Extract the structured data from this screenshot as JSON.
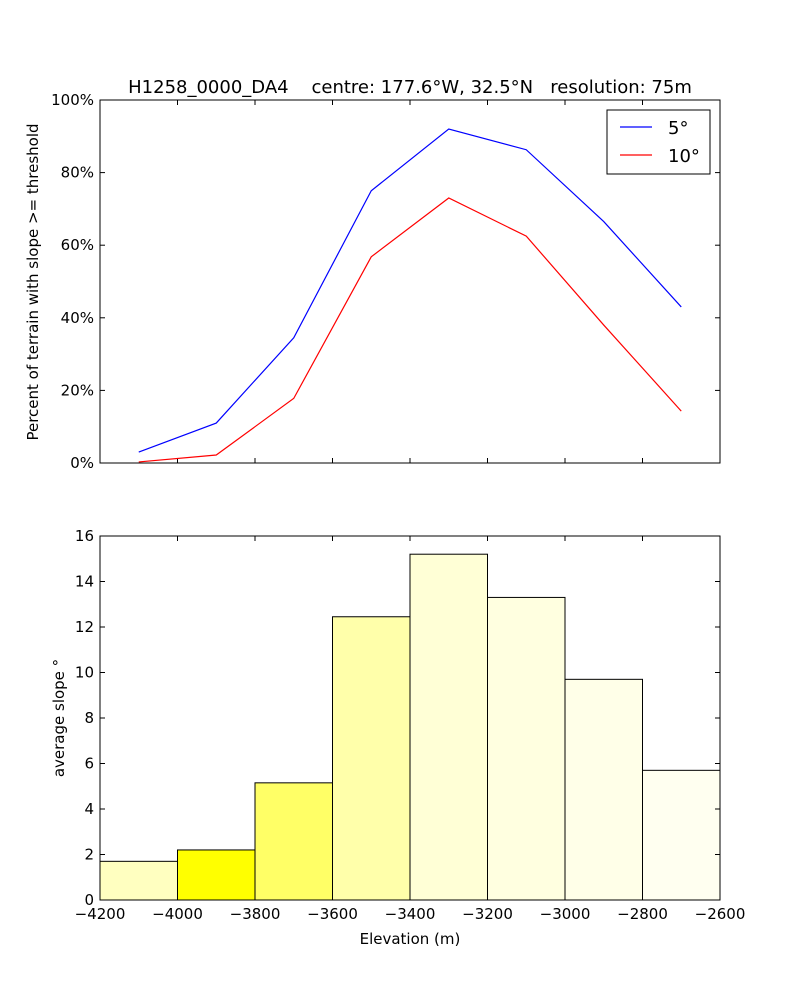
{
  "figure_title": "H1258_0000_DA4    centre: 177.6°W, 32.5°N   resolution: 75m",
  "chart_data": [
    {
      "type": "line",
      "ylabel": "Percent of terrain with slope >= threshold",
      "xlabel": "",
      "xlim": [
        -4200,
        -2600
      ],
      "ylim": [
        0,
        100
      ],
      "x_ticks": [
        -4200,
        -4000,
        -3800,
        -3600,
        -3400,
        -3200,
        -3000,
        -2800,
        -2600
      ],
      "y_ticks": [
        0,
        20,
        40,
        60,
        80,
        100
      ],
      "y_tick_labels": [
        "0%",
        "20%",
        "40%",
        "60%",
        "80%",
        "100%"
      ],
      "legend_position": "top-right",
      "x": [
        -4100,
        -3900,
        -3700,
        -3500,
        -3300,
        -3100,
        -2900,
        -2700
      ],
      "series": [
        {
          "name": "5°",
          "color": "#0000ff",
          "values": [
            3.0,
            11.0,
            34.5,
            75.0,
            92.0,
            86.3,
            66.5,
            43.0
          ]
        },
        {
          "name": "10°",
          "color": "#ff0000",
          "values": [
            0.3,
            2.2,
            17.8,
            56.8,
            73.0,
            62.5,
            38.0,
            14.3
          ]
        }
      ]
    },
    {
      "type": "bar",
      "ylabel": "average slope °",
      "xlabel": "Elevation (m)",
      "xlim": [
        -4200,
        -2600
      ],
      "ylim": [
        0,
        16
      ],
      "x_ticks": [
        -4200,
        -4000,
        -3800,
        -3600,
        -3400,
        -3200,
        -3000,
        -2800,
        -2600
      ],
      "x_tick_labels": [
        "−4200",
        "−4000",
        "−3800",
        "−3600",
        "−3400",
        "−3200",
        "−3000",
        "−2800",
        "−2600"
      ],
      "y_ticks": [
        0,
        2,
        4,
        6,
        8,
        10,
        12,
        14,
        16
      ],
      "y_tick_labels": [
        "0",
        "2",
        "4",
        "6",
        "8",
        "10",
        "12",
        "14",
        "16"
      ],
      "bins": [
        {
          "start": -4200,
          "end": -4000,
          "value": 1.7,
          "color": "#ffffc0"
        },
        {
          "start": -4000,
          "end": -3800,
          "value": 2.2,
          "color": "#ffff00"
        },
        {
          "start": -3800,
          "end": -3600,
          "value": 5.15,
          "color": "#ffff66"
        },
        {
          "start": -3600,
          "end": -3400,
          "value": 12.45,
          "color": "#ffffaa"
        },
        {
          "start": -3400,
          "end": -3200,
          "value": 15.2,
          "color": "#ffffd6"
        },
        {
          "start": -3200,
          "end": -3000,
          "value": 13.3,
          "color": "#ffffe0"
        },
        {
          "start": -3000,
          "end": -2800,
          "value": 9.7,
          "color": "#ffffe8"
        },
        {
          "start": -2800,
          "end": -2600,
          "value": 5.7,
          "color": "#fffff0"
        }
      ]
    }
  ]
}
